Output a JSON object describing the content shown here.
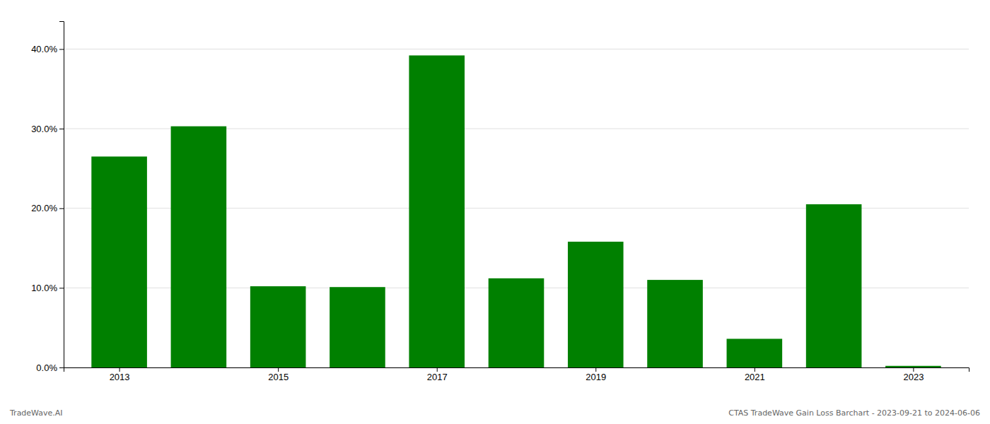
{
  "chart_data": {
    "type": "bar",
    "x": [
      2013,
      2014,
      2015,
      2016,
      2017,
      2018,
      2019,
      2020,
      2021,
      2022,
      2023
    ],
    "values": [
      0.265,
      0.303,
      0.102,
      0.101,
      0.392,
      0.112,
      0.158,
      0.11,
      0.036,
      0.205,
      0.002
    ],
    "color": "#008000",
    "xlim": [
      2012.3,
      2023.7
    ],
    "xticks": [
      2013,
      2015,
      2017,
      2019,
      2021,
      2023
    ],
    "ylim": [
      0.0,
      0.435
    ],
    "yticks": [
      {
        "value": 0.0,
        "label": "0.0%"
      },
      {
        "value": 0.1,
        "label": "10.0%"
      },
      {
        "value": 0.2,
        "label": "20.0%"
      },
      {
        "value": 0.3,
        "label": "30.0%"
      },
      {
        "value": 0.4,
        "label": "40.0%"
      }
    ],
    "grid": true,
    "annotations": [
      "TradeWave.AI",
      "CTAS TradeWave Gain Loss Barchart - 2023-09-21 to 2024-06-06"
    ]
  }
}
